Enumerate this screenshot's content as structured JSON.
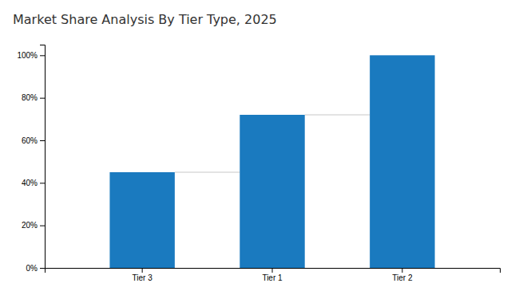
{
  "chart_data": {
    "type": "bar",
    "title": "Market Share Analysis By Tier Type, 2025",
    "categories": [
      "Tier 3",
      "Tier 1",
      "Tier 2"
    ],
    "values": [
      45,
      72,
      100
    ],
    "color": "#1a7abf",
    "ylim": [
      0,
      105
    ],
    "yticks": [
      {
        "value": 0,
        "label": "0%"
      },
      {
        "value": 20,
        "label": "20%"
      },
      {
        "value": 40,
        "label": "40%"
      },
      {
        "value": 60,
        "label": "60%"
      },
      {
        "value": 80,
        "label": "80%"
      },
      {
        "value": 100,
        "label": "100%"
      }
    ],
    "grid": false
  }
}
